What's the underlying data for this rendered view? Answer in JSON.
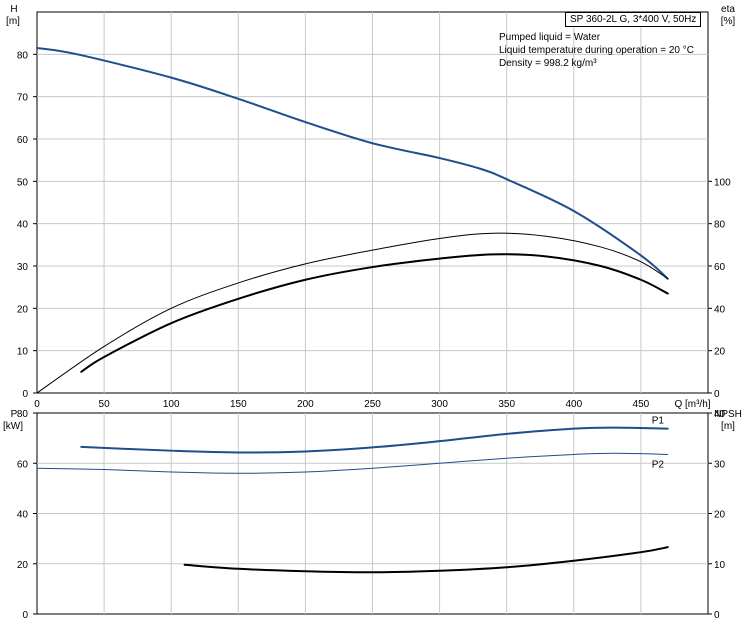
{
  "header": {
    "pump_title": "SP 360-2L G, 3*400 V, 50Hz",
    "info_lines": [
      "Pumped liquid = Water",
      "Liquid temperature during operation = 20 °C",
      "Density = 998.2 kg/m³"
    ]
  },
  "chart_data": [
    {
      "type": "line",
      "panel": "top",
      "xlabel": "Q [m³/h]",
      "ylabel_left": [
        "H",
        "[m]"
      ],
      "ylabel_right": [
        "eta",
        "[%]"
      ],
      "xlim": [
        0,
        500
      ],
      "ylim_left": [
        0,
        90
      ],
      "ylim_right": [
        0,
        180
      ],
      "x_ticks": [
        0,
        50,
        100,
        150,
        200,
        250,
        300,
        350,
        400,
        450
      ],
      "y_ticks_left": [
        0,
        10,
        20,
        30,
        40,
        50,
        60,
        70,
        80
      ],
      "y_ticks_right": [
        0,
        20,
        40,
        60,
        80,
        100
      ],
      "grid": true,
      "series": [
        {
          "axis": "left",
          "color": "#1f4e8c",
          "width": 2,
          "points": [
            [
              0,
              81.5
            ],
            [
              30,
              80
            ],
            [
              100,
              74.5
            ],
            [
              150,
              69.5
            ],
            [
              200,
              64
            ],
            [
              250,
              59
            ],
            [
              300,
              55.5
            ],
            [
              330,
              53
            ],
            [
              350,
              50.5
            ],
            [
              400,
              43
            ],
            [
              450,
              32.5
            ],
            [
              470,
              27
            ]
          ]
        },
        {
          "axis": "right",
          "color": "#000000",
          "width": 1,
          "points": [
            [
              0,
              0
            ],
            [
              50,
              22
            ],
            [
              100,
              40
            ],
            [
              150,
              52
            ],
            [
              200,
              61
            ],
            [
              250,
              67.5
            ],
            [
              300,
              73
            ],
            [
              340,
              75.5
            ],
            [
              380,
              74
            ],
            [
              420,
              69
            ],
            [
              450,
              62
            ],
            [
              470,
              54
            ]
          ]
        },
        {
          "axis": "right",
          "color": "#000000",
          "width": 2,
          "points": [
            [
              33,
              10
            ],
            [
              50,
              17
            ],
            [
              100,
              33
            ],
            [
              150,
              44.5
            ],
            [
              200,
              53.5
            ],
            [
              250,
              59.5
            ],
            [
              300,
              63.5
            ],
            [
              340,
              65.5
            ],
            [
              380,
              64.5
            ],
            [
              420,
              60
            ],
            [
              450,
              53.5
            ],
            [
              470,
              47
            ]
          ]
        }
      ]
    },
    {
      "type": "line",
      "panel": "bottom",
      "ylabel_left": [
        "P",
        "[kW]"
      ],
      "ylabel_right": [
        "NPSH",
        "[m]"
      ],
      "xlim": [
        0,
        500
      ],
      "ylim_left": [
        0,
        80
      ],
      "ylim_right": [
        0,
        40
      ],
      "y_ticks_left": [
        0,
        20,
        40,
        60,
        80
      ],
      "y_ticks_right": [
        0,
        10,
        20,
        30,
        40
      ],
      "grid": true,
      "series": [
        {
          "name": "P1",
          "axis": "left",
          "color": "#1f4e8c",
          "width": 2,
          "points": [
            [
              33,
              66.5
            ],
            [
              100,
              65
            ],
            [
              150,
              64.3
            ],
            [
              200,
              64.7
            ],
            [
              250,
              66.3
            ],
            [
              300,
              68.8
            ],
            [
              350,
              71.7
            ],
            [
              400,
              73.8
            ],
            [
              430,
              74.2
            ],
            [
              470,
              73.8
            ]
          ]
        },
        {
          "name": "P2",
          "axis": "left",
          "color": "#1f4e8c",
          "width": 1,
          "points": [
            [
              0,
              58
            ],
            [
              50,
              57.5
            ],
            [
              100,
              56.5
            ],
            [
              150,
              56
            ],
            [
              200,
              56.5
            ],
            [
              250,
              58
            ],
            [
              300,
              60
            ],
            [
              350,
              62
            ],
            [
              400,
              63.5
            ],
            [
              430,
              64
            ],
            [
              470,
              63.5
            ]
          ]
        },
        {
          "name": "",
          "axis": "right",
          "color": "#000000",
          "width": 2,
          "points": [
            [
              110,
              9.8
            ],
            [
              150,
              9
            ],
            [
              200,
              8.5
            ],
            [
              250,
              8.3
            ],
            [
              300,
              8.6
            ],
            [
              350,
              9.3
            ],
            [
              400,
              10.6
            ],
            [
              450,
              12.3
            ],
            [
              470,
              13.3
            ]
          ]
        }
      ],
      "series_labels": [
        "P1",
        "P2"
      ]
    }
  ]
}
